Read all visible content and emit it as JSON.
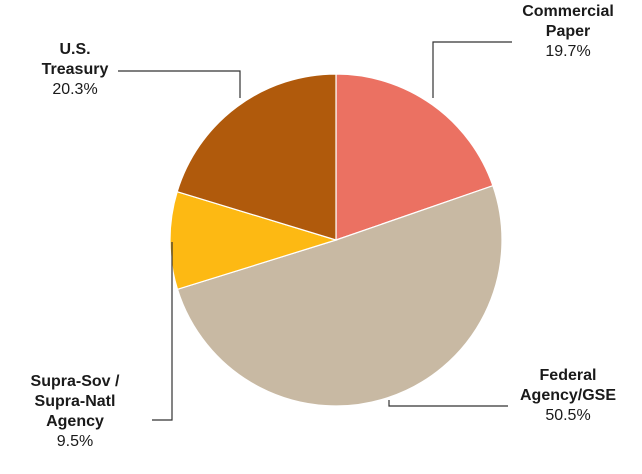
{
  "chart_data": {
    "type": "pie",
    "title": "",
    "slices": [
      {
        "name_lines": [
          "Commercial",
          "Paper"
        ],
        "value": 19.7,
        "value_label": "19.7%",
        "color": "#EB7162"
      },
      {
        "name_lines": [
          "Federal",
          "Agency/GSE"
        ],
        "value": 50.5,
        "value_label": "50.5%",
        "color": "#C8B9A3"
      },
      {
        "name_lines": [
          "Supra-Sov /",
          "Supra-Natl",
          "Agency"
        ],
        "value": 9.5,
        "value_label": "9.5%",
        "color": "#FDB913"
      },
      {
        "name_lines": [
          "U.S.",
          "Treasury"
        ],
        "value": 20.3,
        "value_label": "20.3%",
        "color": "#B05A0C"
      }
    ]
  }
}
